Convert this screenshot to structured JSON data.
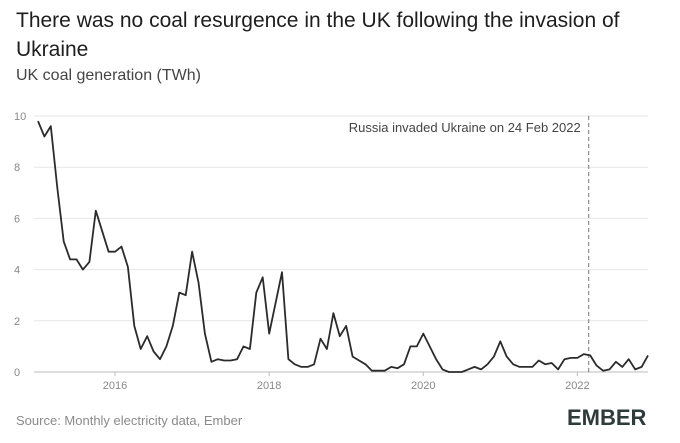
{
  "title": "There was no coal resurgence in the UK following the invasion of Ukraine",
  "subtitle": "UK coal generation (TWh)",
  "source": "Source: Monthly electricity data, Ember",
  "logo": {
    "name": "ember-logo",
    "text": "EMBER"
  },
  "colors": {
    "line": "#2b2b2b",
    "grid": "#e6e6e6",
    "axis": "#bbbbbb",
    "annotation": "#777777",
    "text": "#888888"
  },
  "chart_data": {
    "type": "line",
    "title": "There was no coal resurgence in the UK following the invasion of Ukraine",
    "ylabel": "UK coal generation (TWh)",
    "xlabel": "",
    "ylim": [
      0,
      10
    ],
    "xlim": [
      "2015-01",
      "2022-12"
    ],
    "y_ticks": [
      0,
      2,
      4,
      6,
      8,
      10
    ],
    "x_ticks": [
      "2016",
      "2018",
      "2020",
      "2022"
    ],
    "grid": "horizontal",
    "x": [
      "2015-01",
      "2015-02",
      "2015-03",
      "2015-04",
      "2015-05",
      "2015-06",
      "2015-07",
      "2015-08",
      "2015-09",
      "2015-10",
      "2015-11",
      "2015-12",
      "2016-01",
      "2016-02",
      "2016-03",
      "2016-04",
      "2016-05",
      "2016-06",
      "2016-07",
      "2016-08",
      "2016-09",
      "2016-10",
      "2016-11",
      "2016-12",
      "2017-01",
      "2017-02",
      "2017-03",
      "2017-04",
      "2017-05",
      "2017-06",
      "2017-07",
      "2017-08",
      "2017-09",
      "2017-10",
      "2017-11",
      "2017-12",
      "2018-01",
      "2018-02",
      "2018-03",
      "2018-04",
      "2018-05",
      "2018-06",
      "2018-07",
      "2018-08",
      "2018-09",
      "2018-10",
      "2018-11",
      "2018-12",
      "2019-01",
      "2019-02",
      "2019-03",
      "2019-04",
      "2019-05",
      "2019-06",
      "2019-07",
      "2019-08",
      "2019-09",
      "2019-10",
      "2019-11",
      "2019-12",
      "2020-01",
      "2020-02",
      "2020-03",
      "2020-04",
      "2020-05",
      "2020-06",
      "2020-07",
      "2020-08",
      "2020-09",
      "2020-10",
      "2020-11",
      "2020-12",
      "2021-01",
      "2021-02",
      "2021-03",
      "2021-04",
      "2021-05",
      "2021-06",
      "2021-07",
      "2021-08",
      "2021-09",
      "2021-10",
      "2021-11",
      "2021-12",
      "2022-01",
      "2022-02",
      "2022-03",
      "2022-04",
      "2022-05",
      "2022-06",
      "2022-07",
      "2022-08",
      "2022-09",
      "2022-10",
      "2022-11",
      "2022-12"
    ],
    "series": [
      {
        "values": [
          9.8,
          9.2,
          9.6,
          7.2,
          5.1,
          4.4,
          4.4,
          4.0,
          4.3,
          6.3,
          5.5,
          4.7,
          4.7,
          4.9,
          4.1,
          1.8,
          0.9,
          1.4,
          0.8,
          0.5,
          1.0,
          1.8,
          3.1,
          3.0,
          4.7,
          3.5,
          1.5,
          0.4,
          0.5,
          0.45,
          0.45,
          0.5,
          1.0,
          0.9,
          3.1,
          3.7,
          1.5,
          2.7,
          3.9,
          0.5,
          0.3,
          0.2,
          0.2,
          0.3,
          1.3,
          0.9,
          2.3,
          1.4,
          1.8,
          0.6,
          0.45,
          0.3,
          0.05,
          0.05,
          0.05,
          0.2,
          0.15,
          0.3,
          1.0,
          1.0,
          1.5,
          1.0,
          0.5,
          0.1,
          0.0,
          0.0,
          0.0,
          0.1,
          0.2,
          0.1,
          0.3,
          0.6,
          1.2,
          0.6,
          0.3,
          0.2,
          0.2,
          0.2,
          0.45,
          0.3,
          0.35,
          0.1,
          0.5,
          0.55,
          0.55,
          0.7,
          0.65,
          0.25,
          0.05,
          0.1,
          0.4,
          0.2,
          0.5,
          0.1,
          0.2,
          0.65
        ]
      }
    ],
    "annotations": [
      {
        "date": "2022-02-24",
        "text": "Russia invaded Ukraine on 24 Feb 2022",
        "style": "dashed-vertical-line"
      }
    ]
  }
}
